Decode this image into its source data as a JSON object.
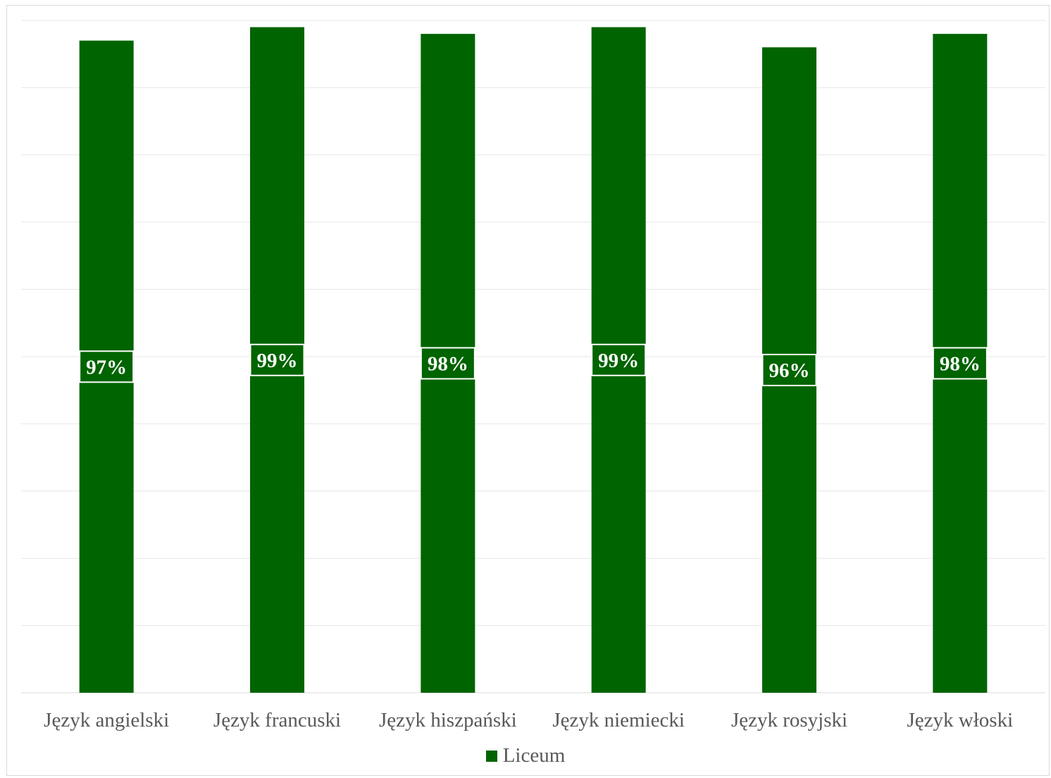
{
  "chart_data": {
    "type": "bar",
    "title": "",
    "xlabel": "",
    "ylabel": "",
    "categories": [
      "Język angielski",
      "Język francuski",
      "Język hiszpański",
      "Język niemiecki",
      "Język rosyjski",
      "Język włoski"
    ],
    "series": [
      {
        "name": "Liceum",
        "values": [
          97,
          99,
          98,
          99,
          96,
          98
        ],
        "labels": [
          "97%",
          "99%",
          "98%",
          "99%",
          "96%",
          "98%"
        ],
        "color": "#006400"
      }
    ],
    "ylim": [
      0,
      100
    ],
    "grid": true,
    "legend_position": "bottom"
  }
}
